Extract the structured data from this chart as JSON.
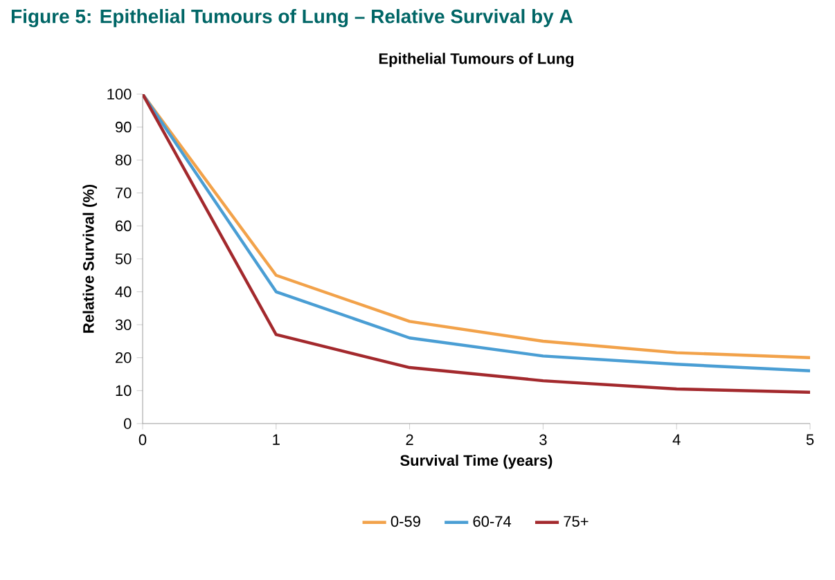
{
  "chart_data": {
    "type": "line",
    "title": "Epithelial Tumours of Lung",
    "annotations": [
      "Figure 5: Epithelial Tumours of Lung – Relative Survival by A"
    ],
    "xlabel": "Survival Time (years)",
    "ylabel": "Relative Survival (%)",
    "x": [
      0,
      1,
      2,
      3,
      4,
      5
    ],
    "series": [
      {
        "name": "0-59",
        "color": "#f2a24a",
        "values": [
          100,
          45,
          31,
          25,
          21.5,
          20
        ]
      },
      {
        "name": "60-74",
        "color": "#4a9ed4",
        "values": [
          100,
          40,
          26,
          20.5,
          18,
          16
        ]
      },
      {
        "name": "75+",
        "color": "#a3292d",
        "values": [
          100,
          27,
          17,
          13,
          10.5,
          9.5
        ]
      }
    ],
    "xlim": [
      0,
      5
    ],
    "xticks": [
      0,
      1,
      2,
      3,
      4,
      5
    ],
    "ylim": [
      0,
      100
    ],
    "yticks": [
      0,
      10,
      20,
      30,
      40,
      50,
      60,
      70,
      80,
      90,
      100
    ],
    "grid": false,
    "legend": "bottom",
    "marker": "none",
    "line_style": "solid"
  }
}
